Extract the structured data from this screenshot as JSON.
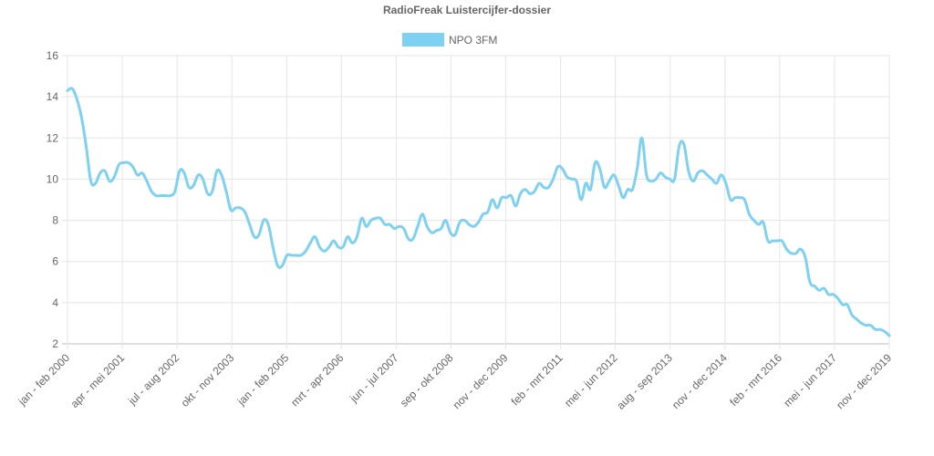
{
  "chart_data": {
    "type": "line",
    "title": "RadioFreak Luistercijfer-dossier",
    "legend": "top",
    "grid": true,
    "ylim": [
      2,
      16
    ],
    "yticks": [
      2,
      4,
      6,
      8,
      10,
      12,
      14,
      16
    ],
    "xtick_labels": [
      "jan - feb 2000",
      "apr - mei 2001",
      "jul - aug 2002",
      "okt - nov 2003",
      "jan - feb 2005",
      "mrt - apr 2006",
      "jun - jul 2007",
      "sep - okt 2008",
      "nov - dec 2009",
      "feb - mrt 2011",
      "mei - jun 2012",
      "aug - sep 2013",
      "nov - dec 2014",
      "feb - mrt 2016",
      "mei - jun 2017",
      "nov - dec 2019"
    ],
    "series": [
      {
        "name": "NPO 3FM",
        "color": "#7fd1f2",
        "values": [
          14.3,
          14.4,
          13.9,
          13.0,
          11.6,
          9.9,
          9.8,
          10.3,
          10.4,
          9.9,
          10.1,
          10.7,
          10.8,
          10.8,
          10.6,
          10.2,
          10.3,
          9.9,
          9.4,
          9.2,
          9.2,
          9.2,
          9.2,
          9.4,
          10.4,
          10.3,
          9.6,
          9.7,
          10.2,
          10.0,
          9.3,
          9.4,
          10.4,
          10.2,
          9.4,
          8.5,
          8.6,
          8.6,
          8.4,
          7.8,
          7.2,
          7.3,
          8.0,
          7.8,
          6.7,
          5.8,
          5.8,
          6.3,
          6.3,
          6.3,
          6.3,
          6.5,
          6.9,
          7.2,
          6.7,
          6.5,
          6.7,
          7.0,
          6.7,
          6.7,
          7.2,
          6.9,
          7.2,
          8.1,
          7.7,
          8.0,
          8.1,
          8.1,
          7.8,
          7.8,
          7.6,
          7.7,
          7.6,
          7.1,
          7.1,
          7.7,
          8.3,
          7.7,
          7.4,
          7.5,
          7.6,
          8.0,
          7.4,
          7.3,
          7.9,
          8.0,
          7.8,
          7.7,
          7.9,
          8.3,
          8.4,
          9.0,
          8.6,
          9.1,
          9.1,
          9.2,
          8.7,
          9.3,
          9.5,
          9.3,
          9.4,
          9.8,
          9.6,
          9.6,
          10.0,
          10.6,
          10.5,
          10.1,
          10.0,
          9.9,
          9.0,
          9.8,
          9.5,
          10.8,
          10.5,
          9.6,
          9.9,
          10.2,
          9.7,
          9.1,
          9.5,
          9.5,
          10.5,
          12.0,
          10.2,
          9.9,
          10.0,
          10.3,
          10.1,
          10.0,
          10.0,
          11.6,
          11.7,
          10.4,
          9.9,
          10.3,
          10.4,
          10.2,
          10.0,
          9.8,
          10.2,
          9.8,
          9.0,
          9.1,
          9.1,
          9.0,
          8.3,
          8.0,
          7.8,
          7.9,
          7.0,
          7.0,
          7.0,
          7.0,
          6.6,
          6.4,
          6.4,
          6.6,
          6.2,
          5.0,
          4.8,
          4.6,
          4.7,
          4.4,
          4.4,
          4.2,
          3.9,
          3.9,
          3.4,
          3.2,
          3.0,
          2.9,
          2.9,
          2.7,
          2.7,
          2.6,
          2.4
        ]
      }
    ]
  }
}
